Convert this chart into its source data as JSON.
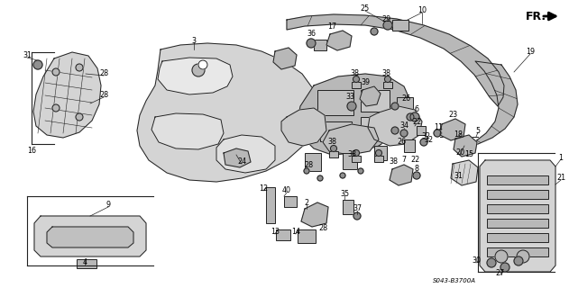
{
  "bg_color": "#ffffff",
  "diagram_code": "S043-B3700A",
  "fr_label": "FR.",
  "fig_width": 6.31,
  "fig_height": 3.2,
  "dpi": 100,
  "line_color": "#222222",
  "fill_light": "#d4d4d4",
  "fill_med": "#b8b8b8",
  "fill_dark": "#909090",
  "label_fontsize": 5.8
}
